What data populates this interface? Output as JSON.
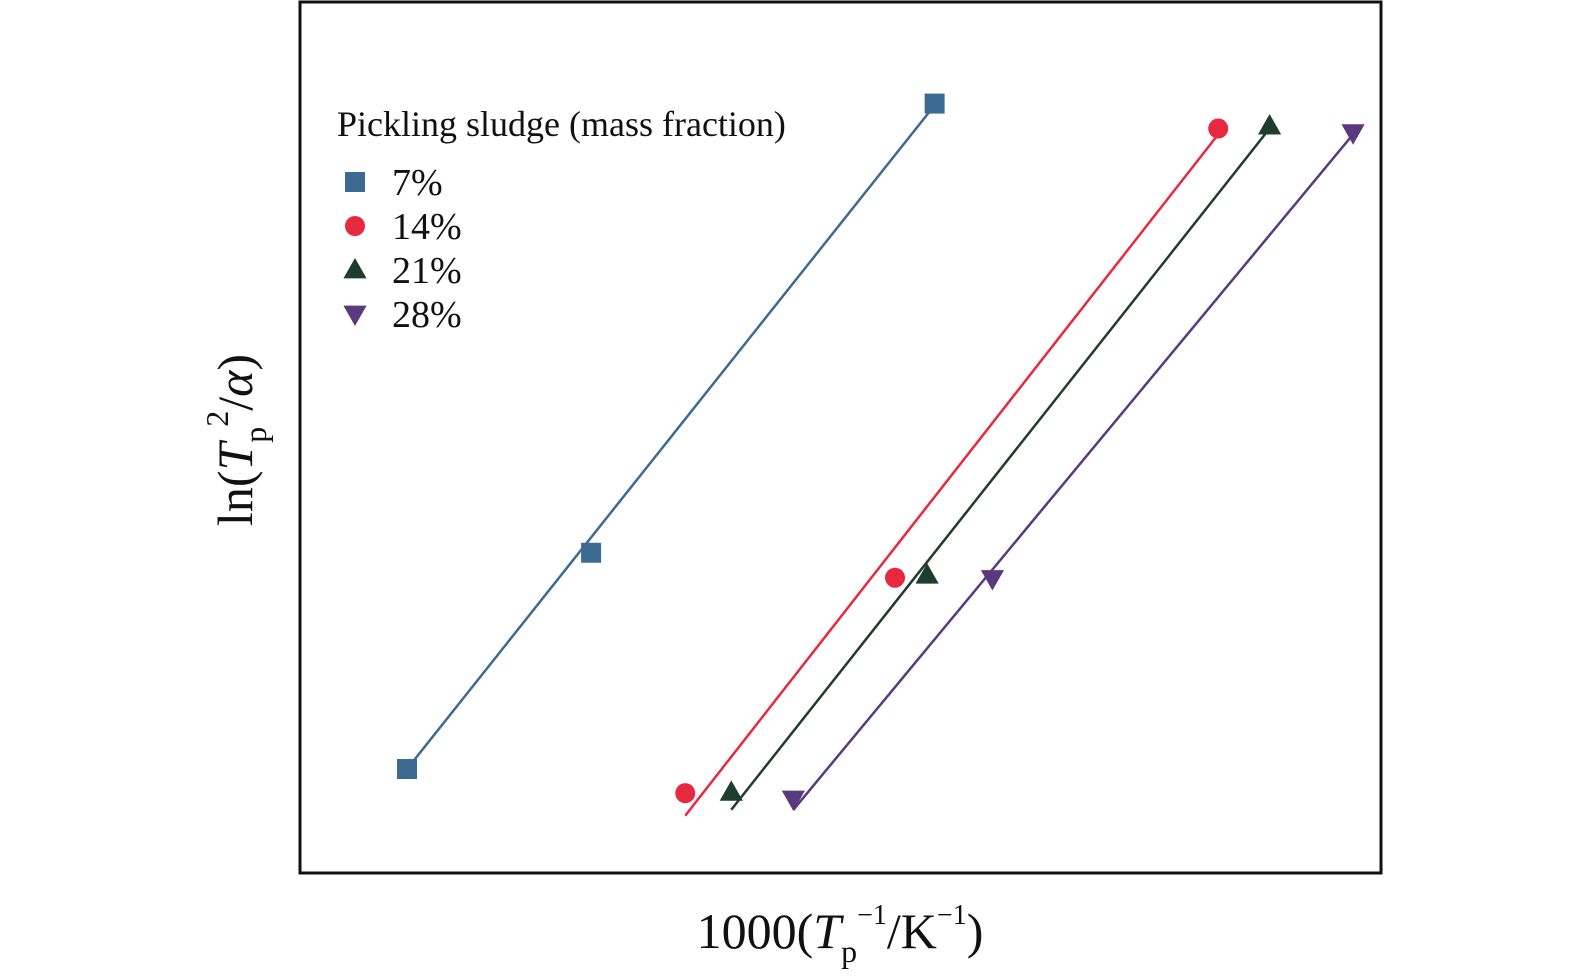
{
  "chart_data": {
    "type": "scatter",
    "title": "",
    "xlabel": {
      "base": "1000(",
      "var": "T",
      "sub": "p",
      "sup1": "−1",
      "mid": "/K",
      "sup2": "−1",
      "end": ")"
    },
    "ylabel": {
      "base": "ln(",
      "var": "T",
      "sub": "p",
      "sup": "2",
      "mid": "/",
      "greek": "α",
      "end": ")"
    },
    "ticks_shown": false,
    "grid": false,
    "xlim": [
      0,
      100
    ],
    "ylim": [
      0,
      100
    ],
    "legend": {
      "title": "Pickling sludge (mass fraction)",
      "position": "top-left"
    },
    "series": [
      {
        "name": "7%",
        "marker": "square",
        "color": "#3d6a93",
        "points": [
          [
            10,
            12.5
          ],
          [
            27.2,
            38.5
          ],
          [
            59.3,
            92.5
          ]
        ],
        "fit": [
          [
            10,
            12.5
          ],
          [
            59.3,
            92.3
          ]
        ]
      },
      {
        "name": "14%",
        "marker": "circle",
        "color": "#e8283e",
        "points": [
          [
            36,
            9.6
          ],
          [
            55.6,
            35.5
          ],
          [
            85.8,
            89.5
          ]
        ],
        "fit": [
          [
            36,
            6.9
          ],
          [
            85.8,
            88.8
          ]
        ]
      },
      {
        "name": "21%",
        "marker": "triangle-up",
        "color": "#1f3d2c",
        "points": [
          [
            40.3,
            9.7
          ],
          [
            58.6,
            35.8
          ],
          [
            90.6,
            89.8
          ]
        ],
        "fit": [
          [
            40.3,
            7.6
          ],
          [
            90.6,
            89.5
          ]
        ]
      },
      {
        "name": "28%",
        "marker": "triangle-down",
        "color": "#5a3a7e",
        "points": [
          [
            46.1,
            8.9
          ],
          [
            64.7,
            35.4
          ],
          [
            98.4,
            89.0
          ]
        ],
        "fit": [
          [
            46.1,
            7.6
          ],
          [
            98.4,
            88.8
          ]
        ]
      }
    ]
  }
}
